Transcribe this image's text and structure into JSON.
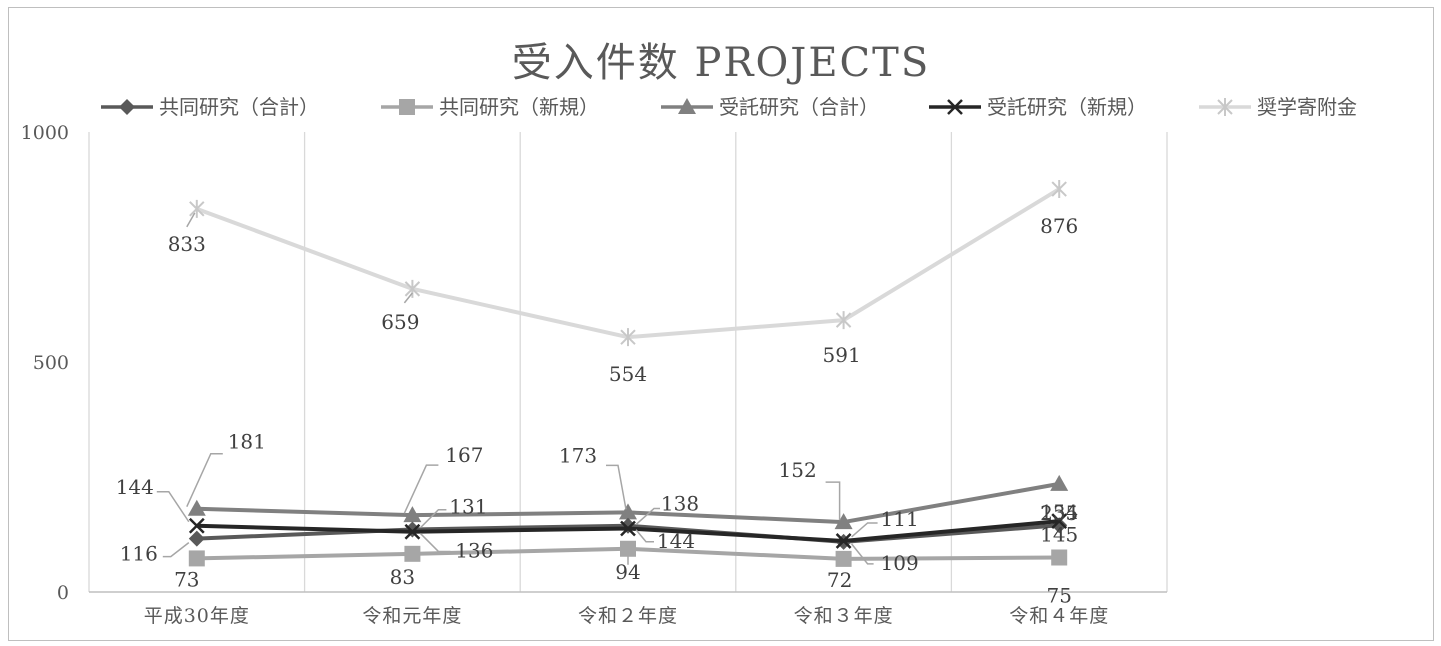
{
  "chart_data": {
    "type": "line",
    "title": "受入件数 PROJECTS",
    "categories": [
      "平成30年度",
      "令和元年度",
      "令和２年度",
      "令和３年度",
      "令和４年度"
    ],
    "ylim": [
      0,
      1000
    ],
    "yticks": [
      "0",
      "500",
      "1000"
    ],
    "grid": "vertical",
    "legend_position": "top",
    "series": [
      {
        "name": "共同研究（合計）",
        "values": [
          116,
          136,
          144,
          109,
          145
        ],
        "color": "#595959",
        "marker": "diamond",
        "key": "kyodo_total"
      },
      {
        "name": "共同研究（新規）",
        "values": [
          73,
          83,
          94,
          72,
          75
        ],
        "color": "#a6a6a6",
        "marker": "square",
        "key": "kyodo_new"
      },
      {
        "name": "受託研究（合計）",
        "values": [
          181,
          167,
          173,
          152,
          235
        ],
        "color": "#808080",
        "marker": "triangle",
        "key": "jutaku_total"
      },
      {
        "name": "受託研究（新規）",
        "values": [
          144,
          131,
          138,
          111,
          154
        ],
        "color": "#262626",
        "marker": "x",
        "key": "jutaku_new"
      },
      {
        "name": "奨学寄附金",
        "values": [
          833,
          659,
          554,
          591,
          876
        ],
        "color": "#d9d9d9",
        "marker": "star",
        "key": "shogaku"
      }
    ]
  }
}
